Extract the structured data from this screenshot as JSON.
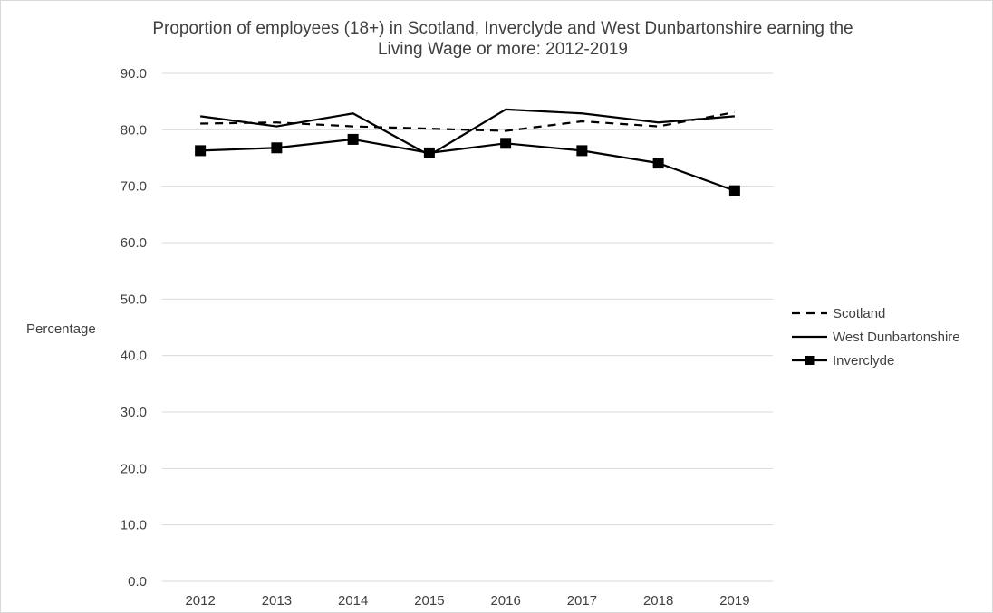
{
  "chart_data": {
    "type": "line",
    "title": "Proportion of employees (18+) in Scotland, Inverclyde and West Dunbartonshire earning the Living Wage or more: 2012-2019",
    "title_lines": [
      "Proportion of employees (18+) in Scotland, Inverclyde and West Dunbartonshire earning the",
      "Living Wage or more: 2012-2019"
    ],
    "xlabel": "",
    "ylabel": "Percentage",
    "categories": [
      "2012",
      "2013",
      "2014",
      "2015",
      "2016",
      "2017",
      "2018",
      "2019"
    ],
    "ylim": [
      0,
      90
    ],
    "yticks": [
      "0.0",
      "10.0",
      "20.0",
      "30.0",
      "40.0",
      "50.0",
      "60.0",
      "70.0",
      "80.0",
      "90.0"
    ],
    "grid": true,
    "legend_position": "right",
    "series": [
      {
        "name": "Scotland",
        "style": "dashed",
        "color": "#000000",
        "values": [
          81.1,
          81.3,
          80.6,
          80.2,
          79.8,
          81.5,
          80.6,
          83.1
        ]
      },
      {
        "name": "West Dunbartonshire",
        "style": "solid",
        "color": "#000000",
        "values": [
          82.4,
          80.6,
          82.9,
          75.5,
          83.6,
          82.9,
          81.3,
          82.4
        ]
      },
      {
        "name": "Inverclyde",
        "style": "solid-square-markers",
        "color": "#000000",
        "values": [
          76.3,
          76.8,
          78.3,
          75.9,
          77.6,
          76.3,
          74.1,
          69.2
        ]
      }
    ]
  },
  "colors": {
    "grid": "#d9d9d9",
    "text": "#404040",
    "series": "#000000"
  }
}
